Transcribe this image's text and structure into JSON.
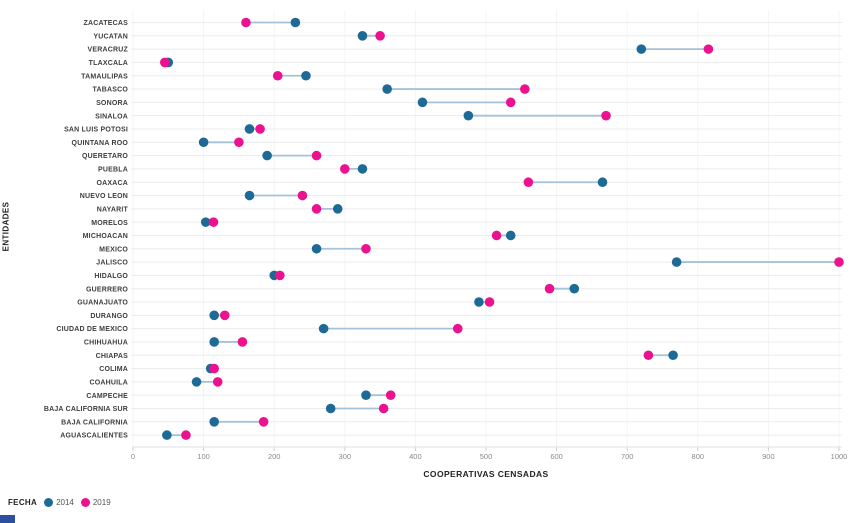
{
  "chart_data": {
    "type": "dumbbell",
    "title": "",
    "xlabel": "COOPERATIVAS CENSADAS",
    "ylabel": "ENTIDADES",
    "xlim": [
      0,
      1000
    ],
    "xticks": [
      0,
      100,
      200,
      300,
      400,
      500,
      600,
      700,
      800,
      900,
      1000
    ],
    "grid": true,
    "legend_position": "bottom-left",
    "legend": {
      "title": "FECHA",
      "series": [
        {
          "name": "2014",
          "color": "#1e6a96"
        },
        {
          "name": "2019",
          "color": "#ec128f"
        }
      ]
    },
    "connector_color": "#a5c3d8",
    "categories": [
      "ZACATECAS",
      "YUCATAN",
      "VERACRUZ",
      "TLAXCALA",
      "TAMAULIPAS",
      "TABASCO",
      "SONORA",
      "SINALOA",
      "SAN LUIS POTOSI",
      "QUINTANA ROO",
      "QUERETARO",
      "PUEBLA",
      "OAXACA",
      "NUEVO LEON",
      "NAYARIT",
      "MORELOS",
      "MICHOACAN",
      "MEXICO",
      "JALISCO",
      "HIDALGO",
      "GUERRERO",
      "GUANAJUATO",
      "DURANGO",
      "CIUDAD DE MEXICO",
      "CHIHUAHUA",
      "CHIAPAS",
      "COLIMA",
      "COAHUILA",
      "CAMPECHE",
      "BAJA CALIFORNIA SUR",
      "BAJA CALIFORNIA",
      "AGUASCALIENTES"
    ],
    "series": [
      {
        "name": "2014",
        "values": [
          230,
          325,
          720,
          50,
          245,
          360,
          410,
          475,
          165,
          100,
          190,
          325,
          665,
          165,
          290,
          103,
          535,
          260,
          770,
          200,
          625,
          490,
          115,
          270,
          115,
          765,
          110,
          90,
          330,
          280,
          115,
          48
        ]
      },
      {
        "name": "2019",
        "values": [
          160,
          350,
          815,
          45,
          205,
          555,
          535,
          670,
          180,
          150,
          260,
          300,
          560,
          240,
          260,
          114,
          515,
          330,
          1000,
          208,
          590,
          505,
          130,
          460,
          155,
          730,
          115,
          120,
          365,
          355,
          185,
          75
        ]
      }
    ]
  },
  "style": {
    "grid_color": "#ececec",
    "vgrid_color": "#f4f4f4",
    "axis_line_color": "#e0e0e0",
    "tick_color": "#cccccc",
    "tick_label_color": "#8a8a8a",
    "category_label_color": "#3d3d3d"
  },
  "footer": {
    "logo_color": "#2d4f9e"
  }
}
